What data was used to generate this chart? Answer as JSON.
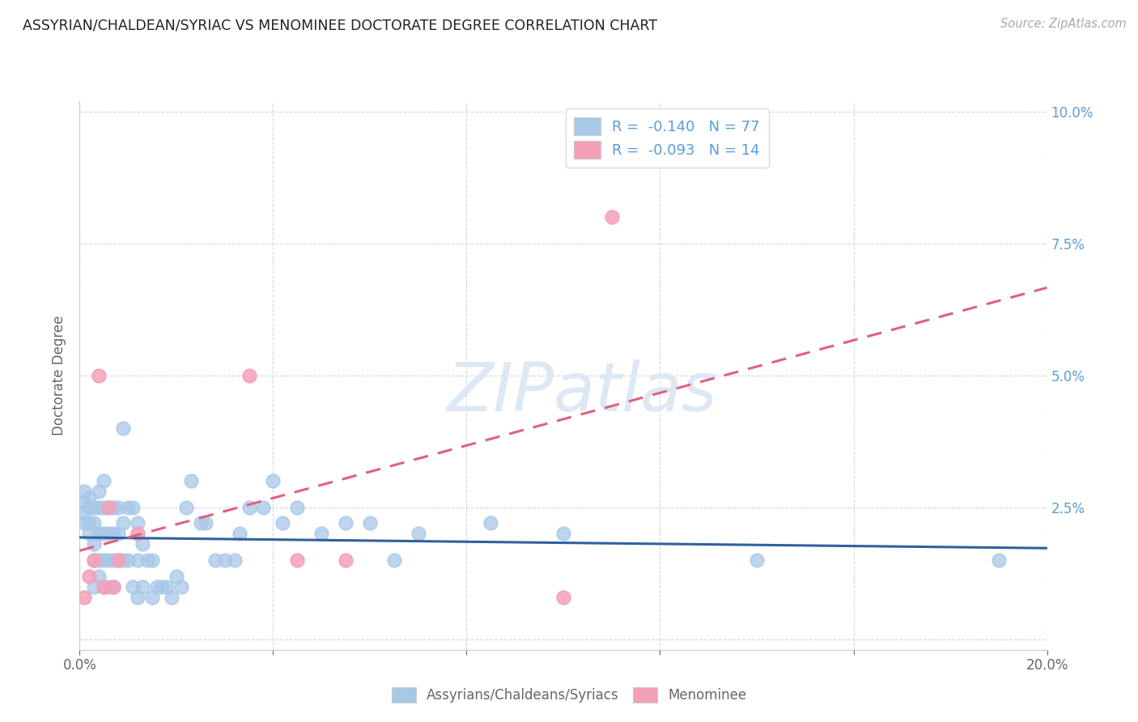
{
  "title": "ASSYRIAN/CHALDEAN/SYRIAC VS MENOMINEE DOCTORATE DEGREE CORRELATION CHART",
  "source": "Source: ZipAtlas.com",
  "ylabel": "Doctorate Degree",
  "xlim": [
    0.0,
    0.2
  ],
  "ylim": [
    -0.002,
    0.102
  ],
  "yticks": [
    0.0,
    0.025,
    0.05,
    0.075,
    0.1
  ],
  "xticks": [
    0.0,
    0.04,
    0.08,
    0.12,
    0.16,
    0.2
  ],
  "color_blue": "#a8c8e8",
  "color_pink": "#f4a0b8",
  "color_blue_line": "#3060a0",
  "color_pink_line": "#e06080",
  "legend_labels": [
    "Assyrians/Chaldeans/Syriacs",
    "Menominee"
  ],
  "watermark": "ZIPatlas",
  "blue_r": -0.14,
  "blue_n": 77,
  "pink_r": -0.093,
  "pink_n": 14,
  "blue_points_x": [
    0.001,
    0.001,
    0.001,
    0.001,
    0.002,
    0.002,
    0.002,
    0.002,
    0.003,
    0.003,
    0.003,
    0.003,
    0.003,
    0.004,
    0.004,
    0.004,
    0.004,
    0.004,
    0.005,
    0.005,
    0.005,
    0.005,
    0.005,
    0.006,
    0.006,
    0.006,
    0.006,
    0.007,
    0.007,
    0.007,
    0.007,
    0.008,
    0.008,
    0.008,
    0.009,
    0.009,
    0.009,
    0.01,
    0.01,
    0.011,
    0.011,
    0.012,
    0.012,
    0.012,
    0.013,
    0.013,
    0.014,
    0.015,
    0.015,
    0.016,
    0.017,
    0.018,
    0.019,
    0.02,
    0.021,
    0.022,
    0.023,
    0.025,
    0.026,
    0.028,
    0.03,
    0.032,
    0.033,
    0.035,
    0.038,
    0.04,
    0.042,
    0.045,
    0.05,
    0.055,
    0.06,
    0.065,
    0.07,
    0.085,
    0.1,
    0.14,
    0.19
  ],
  "blue_points_y": [
    0.022,
    0.024,
    0.026,
    0.028,
    0.02,
    0.022,
    0.025,
    0.027,
    0.01,
    0.015,
    0.018,
    0.022,
    0.025,
    0.012,
    0.015,
    0.02,
    0.025,
    0.028,
    0.01,
    0.015,
    0.02,
    0.025,
    0.03,
    0.01,
    0.015,
    0.02,
    0.025,
    0.01,
    0.015,
    0.02,
    0.025,
    0.015,
    0.02,
    0.025,
    0.015,
    0.022,
    0.04,
    0.015,
    0.025,
    0.01,
    0.025,
    0.008,
    0.015,
    0.022,
    0.01,
    0.018,
    0.015,
    0.008,
    0.015,
    0.01,
    0.01,
    0.01,
    0.008,
    0.012,
    0.01,
    0.025,
    0.03,
    0.022,
    0.022,
    0.015,
    0.015,
    0.015,
    0.02,
    0.025,
    0.025,
    0.03,
    0.022,
    0.025,
    0.02,
    0.022,
    0.022,
    0.015,
    0.02,
    0.022,
    0.02,
    0.015,
    0.015
  ],
  "pink_points_x": [
    0.001,
    0.002,
    0.003,
    0.004,
    0.005,
    0.006,
    0.007,
    0.008,
    0.012,
    0.035,
    0.045,
    0.055,
    0.1,
    0.11
  ],
  "pink_points_y": [
    0.008,
    0.012,
    0.015,
    0.05,
    0.01,
    0.025,
    0.01,
    0.015,
    0.02,
    0.05,
    0.015,
    0.015,
    0.008,
    0.08
  ],
  "grid_color": "#d0d8e0",
  "background_color": "#ffffff",
  "title_color": "#222222",
  "axis_label_color": "#666666",
  "tick_color_right": "#5b9bd5",
  "watermark_color": "#dce8f4"
}
